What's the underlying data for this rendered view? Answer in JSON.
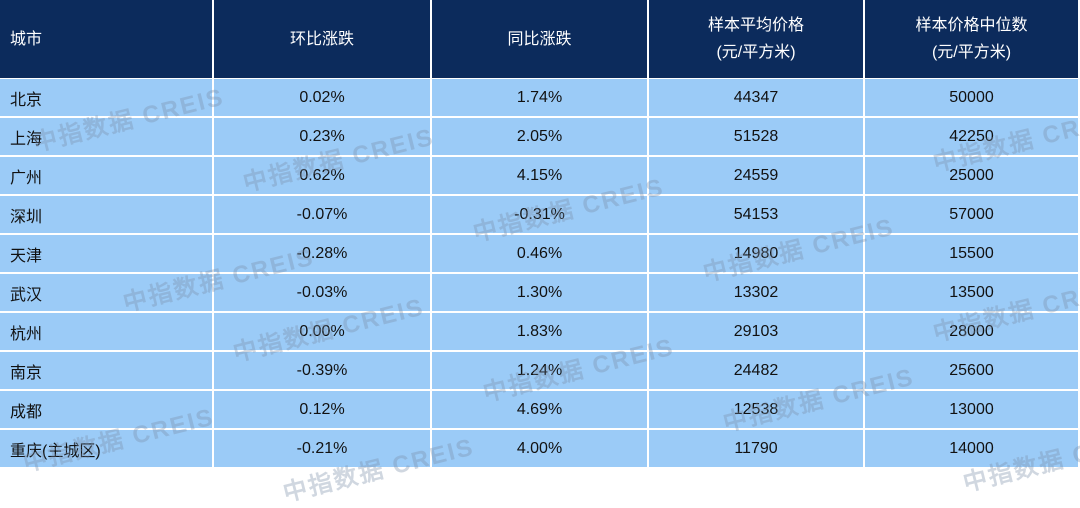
{
  "table": {
    "columns": [
      [
        "城市"
      ],
      [
        "环比涨跌"
      ],
      [
        "同比涨跌"
      ],
      [
        "样本平均价格",
        "(元/平方米)"
      ],
      [
        "样本价格中位数",
        "(元/平方米)"
      ]
    ],
    "rows": [
      [
        "北京",
        "0.02%",
        "1.74%",
        "44347",
        "50000"
      ],
      [
        "上海",
        "0.23%",
        "2.05%",
        "51528",
        "42250"
      ],
      [
        "广州",
        "0.62%",
        "4.15%",
        "24559",
        "25000"
      ],
      [
        "深圳",
        "-0.07%",
        "-0.31%",
        "54153",
        "57000"
      ],
      [
        "天津",
        "-0.28%",
        "0.46%",
        "14980",
        "15500"
      ],
      [
        "武汉",
        "-0.03%",
        "1.30%",
        "13302",
        "13500"
      ],
      [
        "杭州",
        "0.00%",
        "1.83%",
        "29103",
        "28000"
      ],
      [
        "南京",
        "-0.39%",
        "1.24%",
        "24482",
        "25600"
      ],
      [
        "成都",
        "0.12%",
        "4.69%",
        "12538",
        "13000"
      ],
      [
        "重庆(主城区)",
        "-0.21%",
        "4.00%",
        "11790",
        "14000"
      ]
    ]
  },
  "watermark": "中指数据 CREIS"
}
